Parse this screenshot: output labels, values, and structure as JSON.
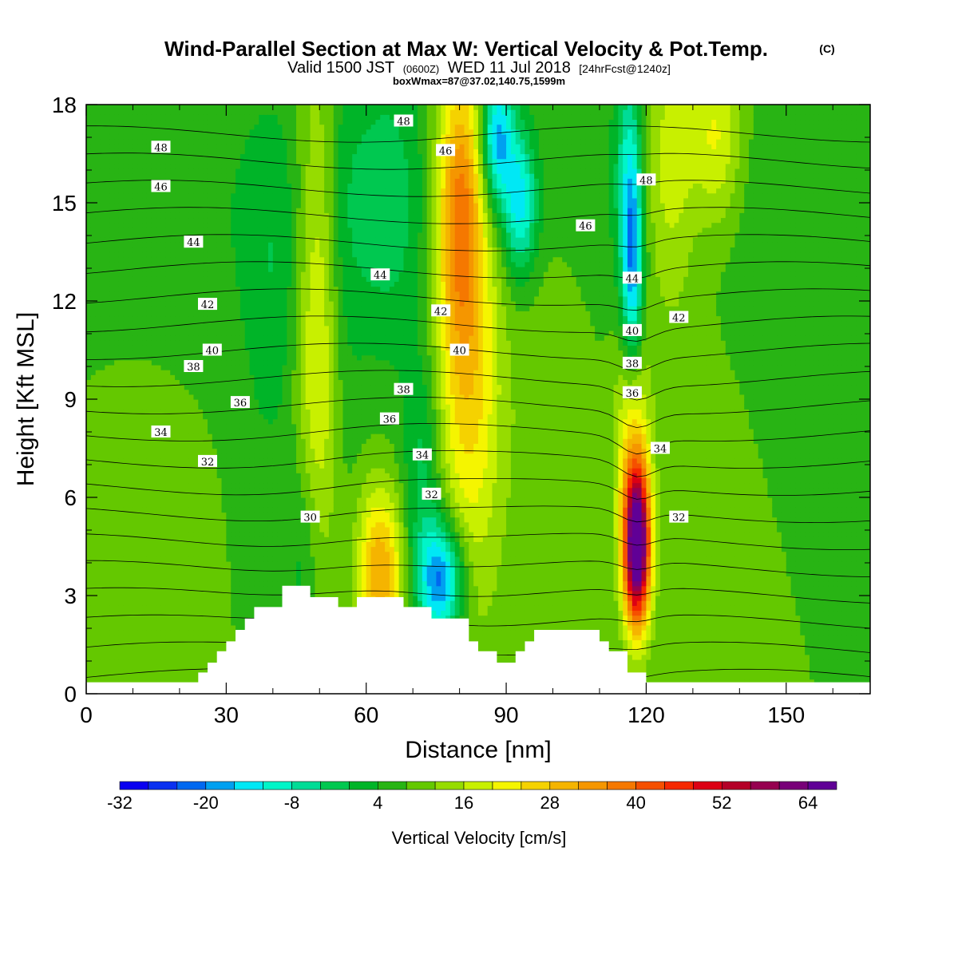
{
  "header": {
    "title": "Wind-Parallel Section at Max W: Vertical Velocity & Pot.Temp.",
    "copyright": "(C)",
    "valid_prefix": "Valid 1500 JST",
    "valid_utc": "(0600Z)",
    "valid_date": "WED 11 Jul 2018",
    "forecast": "[24hrFcst@1240z]",
    "box_info": "boxWmax=87@37.02,140.75,1599m"
  },
  "chart_data": {
    "type": "heatmap",
    "xlabel": "Distance [nm]",
    "ylabel": "Height [Kft MSL]",
    "xlim": [
      0,
      168
    ],
    "ylim": [
      0,
      18
    ],
    "x_ticks": [
      0,
      30,
      60,
      90,
      120,
      150
    ],
    "y_ticks": [
      0,
      3,
      6,
      9,
      12,
      15,
      18
    ],
    "colorbar": {
      "label": "Vertical Velocity [cm/s]",
      "tick_values": [
        -32,
        -20,
        -8,
        4,
        16,
        28,
        40,
        52,
        64
      ],
      "tick_labels": [
        "-32",
        "-20",
        "-8",
        "4",
        "16",
        "28",
        "40",
        "52",
        "64"
      ],
      "range": [
        -32,
        68
      ],
      "colors": [
        "#0a00f0",
        "#0a30f0",
        "#0068f0",
        "#00a0f0",
        "#00e8f5",
        "#00f5c8",
        "#00dc96",
        "#00c850",
        "#00b428",
        "#28b414",
        "#64c800",
        "#96dc00",
        "#c8f000",
        "#f5f500",
        "#f5d200",
        "#f5b400",
        "#f59600",
        "#f57800",
        "#f55000",
        "#f52800",
        "#dc0014",
        "#b40028",
        "#960050",
        "#780078",
        "#600096"
      ]
    },
    "terrain_profile": {
      "x": [
        0,
        22,
        24,
        26,
        28,
        30,
        32,
        34,
        36,
        40,
        42,
        46,
        48,
        52,
        54,
        56,
        58,
        62,
        64,
        66,
        68,
        72,
        74,
        76,
        80,
        82,
        84,
        86,
        88,
        90,
        92,
        94,
        96,
        98,
        104,
        106,
        110,
        112,
        114,
        116,
        118,
        120,
        122,
        168
      ],
      "heights": [
        0.35,
        0.35,
        0.65,
        0.95,
        1.3,
        1.6,
        1.95,
        2.3,
        2.65,
        2.65,
        3.3,
        3.3,
        2.95,
        2.95,
        2.65,
        2.65,
        2.95,
        2.95,
        2.95,
        2.95,
        2.65,
        2.65,
        2.3,
        2.3,
        2.3,
        1.6,
        1.3,
        1.3,
        0.95,
        0.95,
        1.3,
        1.6,
        1.95,
        1.95,
        1.95,
        1.95,
        1.6,
        1.3,
        1.3,
        0.65,
        0.65,
        0.35,
        0.35,
        0.35
      ]
    },
    "velocity_features": [
      {
        "x": 50,
        "y": 11,
        "sx": 3.5,
        "sy": 6,
        "w": 16
      },
      {
        "x": 54,
        "y": 12,
        "sx": 3,
        "sy": 6,
        "w": -6
      },
      {
        "x": 47,
        "y": 4,
        "sx": 3,
        "sy": 2.5,
        "w": -8
      },
      {
        "x": 63,
        "y": 3.7,
        "sx": 3.5,
        "sy": 1.8,
        "w": 24
      },
      {
        "x": 76,
        "y": 3.5,
        "sx": 3.5,
        "sy": 1.3,
        "w": -30
      },
      {
        "x": 72,
        "y": 7,
        "sx": 3,
        "sy": 2.5,
        "w": -10
      },
      {
        "x": 82,
        "y": 10,
        "sx": 5,
        "sy": 5,
        "w": 18
      },
      {
        "x": 80,
        "y": 15,
        "sx": 3.5,
        "sy": 3,
        "w": 24
      },
      {
        "x": 64,
        "y": 15,
        "sx": 6,
        "sy": 3.5,
        "w": -8
      },
      {
        "x": 88,
        "y": 17,
        "sx": 2.5,
        "sy": 1.5,
        "w": -26
      },
      {
        "x": 93,
        "y": 15,
        "sx": 2.5,
        "sy": 1.5,
        "w": -20
      },
      {
        "x": 118,
        "y": 4.5,
        "sx": 2,
        "sy": 1.7,
        "w": 66
      },
      {
        "x": 117,
        "y": 8,
        "sx": 2.5,
        "sy": 2.5,
        "w": 16
      },
      {
        "x": 117,
        "y": 13,
        "sx": 1.6,
        "sy": 2.5,
        "w": -26
      },
      {
        "x": 116,
        "y": 16.5,
        "sx": 2,
        "sy": 2.5,
        "w": -10
      },
      {
        "x": 125,
        "y": 16,
        "sx": 4,
        "sy": 3,
        "w": 12
      },
      {
        "x": 135,
        "y": 17,
        "sx": 4,
        "sy": 2,
        "w": 14
      },
      {
        "x": 10,
        "y": 5,
        "sx": 8,
        "sy": 3,
        "w": 4
      },
      {
        "x": 40,
        "y": 12,
        "sx": 5,
        "sy": 4,
        "w": -6
      },
      {
        "x": 130,
        "y": 9,
        "sx": 6,
        "sy": 4,
        "w": 2
      },
      {
        "x": 100,
        "y": 9,
        "sx": 6,
        "sy": 5,
        "w": 4
      }
    ],
    "theta_contours": {
      "base_levels": [
        28,
        29,
        30,
        31,
        32,
        33,
        34,
        35,
        36,
        37,
        38,
        39,
        40,
        41,
        42,
        43,
        44,
        45,
        46,
        47,
        48
      ],
      "labels": [
        {
          "text": "48",
          "x": 16,
          "y": 16.7
        },
        {
          "text": "46",
          "x": 16,
          "y": 15.5
        },
        {
          "text": "44",
          "x": 23,
          "y": 13.8
        },
        {
          "text": "42",
          "x": 26,
          "y": 11.9
        },
        {
          "text": "40",
          "x": 27,
          "y": 10.5
        },
        {
          "text": "38",
          "x": 23,
          "y": 10
        },
        {
          "text": "36",
          "x": 33,
          "y": 8.9
        },
        {
          "text": "34",
          "x": 16,
          "y": 8
        },
        {
          "text": "32",
          "x": 26,
          "y": 7.1
        },
        {
          "text": "30",
          "x": 48,
          "y": 5.4
        },
        {
          "text": "48",
          "x": 68,
          "y": 17.5
        },
        {
          "text": "46",
          "x": 77,
          "y": 16.6
        },
        {
          "text": "44",
          "x": 63,
          "y": 12.8
        },
        {
          "text": "42",
          "x": 76,
          "y": 11.7
        },
        {
          "text": "40",
          "x": 80,
          "y": 10.5
        },
        {
          "text": "38",
          "x": 68,
          "y": 9.3
        },
        {
          "text": "36",
          "x": 65,
          "y": 8.4
        },
        {
          "text": "34",
          "x": 72,
          "y": 7.3
        },
        {
          "text": "32",
          "x": 74,
          "y": 6.1
        },
        {
          "text": "46",
          "x": 107,
          "y": 14.3
        },
        {
          "text": "48",
          "x": 120,
          "y": 15.7
        },
        {
          "text": "44",
          "x": 117,
          "y": 12.7
        },
        {
          "text": "42",
          "x": 127,
          "y": 11.5
        },
        {
          "text": "40",
          "x": 117,
          "y": 11.1
        },
        {
          "text": "38",
          "x": 117,
          "y": 10.1
        },
        {
          "text": "36",
          "x": 117,
          "y": 9.2
        },
        {
          "text": "34",
          "x": 123,
          "y": 7.5
        },
        {
          "text": "32",
          "x": 127,
          "y": 5.4
        }
      ]
    }
  }
}
